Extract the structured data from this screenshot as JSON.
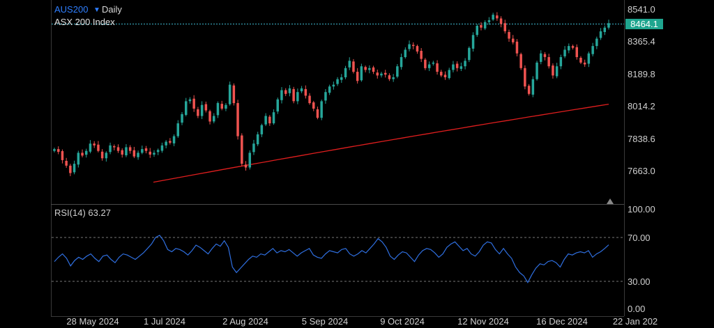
{
  "header": {
    "symbol": "AUS200",
    "timeframe": "Daily",
    "instrument_name": "ASX 200 Index"
  },
  "price_axis": {
    "labels": [
      "8541.0",
      "8365.4",
      "8189.8",
      "8014.2",
      "7838.6",
      "7663.0"
    ],
    "current_price": "8464.1"
  },
  "rsi": {
    "label": "RSI(14) 63.27",
    "axis_labels": [
      "100.00",
      "70.00",
      "30.00",
      "0.00"
    ]
  },
  "time_axis": {
    "labels": [
      "28 May 2024",
      "1 Jul 2024",
      "2 Aug 2024",
      "5 Sep 2024",
      "9 Oct 2024",
      "12 Nov 2024",
      "16 Dec 2024",
      "22 Jan 202"
    ]
  },
  "colors": {
    "up": "#26a69a",
    "down": "#ef5350",
    "moving_average": "#e01e1e",
    "rsi_line": "#2f6fe0",
    "accent": "#2f7fff",
    "badge": "#1fa58f"
  },
  "chart_data": [
    {
      "type": "candlestick",
      "title": "AUS200 Daily",
      "subtitle": "ASX 200 Index",
      "ylim": [
        7560,
        8560
      ],
      "y_ticks": [
        8541.0,
        8365.4,
        8189.8,
        8014.2,
        7838.6,
        7663.0
      ],
      "x_ticks": [
        "28 May 2024",
        "1 Jul 2024",
        "2 Aug 2024",
        "5 Sep 2024",
        "9 Oct 2024",
        "12 Nov 2024",
        "16 Dec 2024",
        "22 Jan 202"
      ],
      "close": [
        7780,
        7765,
        7720,
        7690,
        7650,
        7700,
        7760,
        7745,
        7770,
        7810,
        7800,
        7770,
        7730,
        7760,
        7800,
        7790,
        7770,
        7750,
        7790,
        7770,
        7740,
        7760,
        7780,
        7770,
        7750,
        7760,
        7775,
        7800,
        7820,
        7815,
        7850,
        7920,
        7970,
        8040,
        8050,
        8000,
        7960,
        8020,
        7990,
        7930,
        7960,
        8030,
        8000,
        8020,
        8130,
        8030,
        7850,
        7700,
        7680,
        7760,
        7810,
        7860,
        7910,
        7960,
        7920,
        7980,
        8050,
        8100,
        8080,
        8110,
        8040,
        8090,
        8110,
        8070,
        8030,
        8000,
        7950,
        8040,
        8090,
        8120,
        8130,
        8160,
        8170,
        8220,
        8260,
        8200,
        8150,
        8230,
        8210,
        8220,
        8200,
        8180,
        8190,
        8185,
        8160,
        8170,
        8230,
        8280,
        8320,
        8350,
        8340,
        8310,
        8270,
        8220,
        8240,
        8250,
        8200,
        8180,
        8170,
        8210,
        8240,
        8220,
        8230,
        8260,
        8330,
        8400,
        8450,
        8440,
        8470,
        8480,
        8510,
        8490,
        8460,
        8420,
        8380,
        8360,
        8300,
        8220,
        8120,
        8080,
        8160,
        8250,
        8300,
        8280,
        8230,
        8180,
        8230,
        8280,
        8320,
        8340,
        8330,
        8280,
        8250,
        8240,
        8300,
        8340,
        8380,
        8420,
        8440,
        8464.1
      ],
      "ma": {
        "start": 7600,
        "end": 8024
      }
    },
    {
      "type": "line",
      "name": "RSI(14)",
      "ylim": [
        0,
        100
      ],
      "y_ticks": [
        100,
        70,
        30,
        0
      ],
      "values": [
        48,
        52,
        55,
        51,
        44,
        49,
        52,
        50,
        53,
        55,
        51,
        48,
        53,
        54,
        50,
        47,
        52,
        55,
        54,
        52,
        50,
        53,
        56,
        60,
        64,
        70,
        72,
        67,
        59,
        57,
        60,
        59,
        57,
        54,
        58,
        63,
        61,
        58,
        55,
        60,
        64,
        62,
        67,
        61,
        43,
        38,
        42,
        46,
        50,
        53,
        52,
        55,
        54,
        57,
        60,
        56,
        58,
        57,
        59,
        56,
        53,
        56,
        58,
        60,
        54,
        52,
        51,
        55,
        58,
        57,
        56,
        59,
        60,
        55,
        53,
        55,
        58,
        56,
        60,
        64,
        69,
        66,
        61,
        53,
        50,
        54,
        57,
        56,
        52,
        48,
        54,
        58,
        60,
        59,
        56,
        52,
        55,
        61,
        64,
        66,
        62,
        58,
        60,
        55,
        53,
        57,
        63,
        66,
        65,
        59,
        55,
        60,
        55,
        51,
        43,
        38,
        35,
        29,
        36,
        42,
        46,
        45,
        48,
        49,
        47,
        43,
        50,
        55,
        54,
        56,
        57,
        56,
        58,
        52,
        55,
        57,
        60,
        63.27
      ]
    }
  ]
}
